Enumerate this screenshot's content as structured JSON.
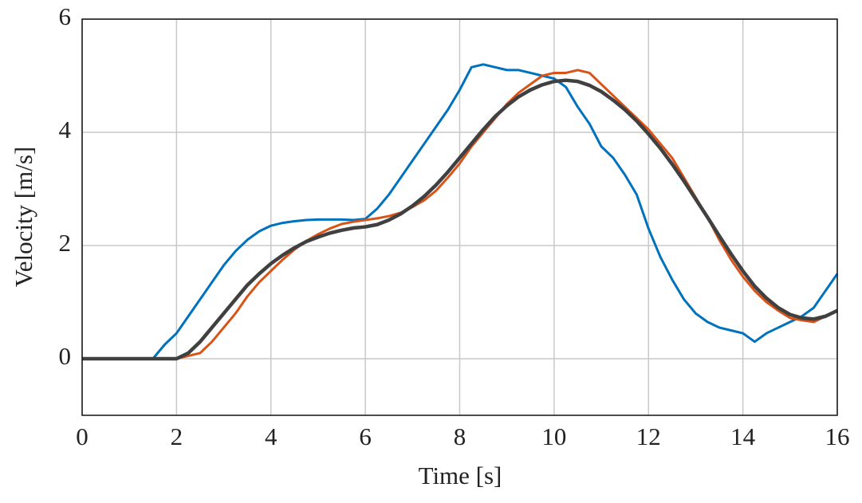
{
  "chart_data": {
    "type": "line",
    "x_label": "Time [s]",
    "y_label": "Velocity [m/s]",
    "x": [
      0,
      0.25,
      0.5,
      0.75,
      1,
      1.25,
      1.5,
      1.75,
      2,
      2.25,
      2.5,
      2.75,
      3,
      3.25,
      3.5,
      3.75,
      4,
      4.25,
      4.5,
      4.75,
      5,
      5.25,
      5.5,
      5.75,
      6,
      6.25,
      6.5,
      6.75,
      7,
      7.25,
      7.5,
      7.75,
      8,
      8.25,
      8.5,
      8.75,
      9,
      9.25,
      9.5,
      9.75,
      10,
      10.25,
      10.5,
      10.75,
      11,
      11.25,
      11.5,
      11.75,
      12,
      12.25,
      12.5,
      12.75,
      13,
      13.25,
      13.5,
      13.75,
      14,
      14.25,
      14.5,
      14.75,
      15,
      15.25,
      15.5,
      15.75,
      16
    ],
    "series": [
      {
        "color": "#0072BD",
        "values": [
          0,
          0,
          0,
          0,
          0,
          0,
          0,
          0.25,
          0.45,
          0.75,
          1.05,
          1.35,
          1.65,
          1.9,
          2.1,
          2.25,
          2.35,
          2.4,
          2.43,
          2.45,
          2.46,
          2.46,
          2.46,
          2.45,
          2.47,
          2.65,
          2.9,
          3.2,
          3.5,
          3.8,
          4.1,
          4.4,
          4.75,
          5.15,
          5.2,
          5.15,
          5.1,
          5.1,
          5.05,
          5.0,
          4.95,
          4.8,
          4.45,
          4.15,
          3.75,
          3.55,
          3.25,
          2.9,
          2.3,
          1.8,
          1.4,
          1.05,
          0.8,
          0.65,
          0.55,
          0.5,
          0.45,
          0.3,
          0.45,
          0.55,
          0.65,
          0.75,
          0.9,
          1.2,
          1.5
        ]
      },
      {
        "color": "#D95319",
        "values": [
          0,
          0,
          0,
          0,
          0,
          0,
          0,
          0,
          0,
          0.05,
          0.1,
          0.3,
          0.55,
          0.8,
          1.1,
          1.35,
          1.55,
          1.75,
          1.93,
          2.08,
          2.2,
          2.3,
          2.38,
          2.42,
          2.45,
          2.48,
          2.52,
          2.58,
          2.68,
          2.8,
          2.97,
          3.2,
          3.45,
          3.75,
          4.0,
          4.25,
          4.5,
          4.7,
          4.85,
          5.0,
          5.05,
          5.05,
          5.1,
          5.05,
          4.85,
          4.65,
          4.45,
          4.25,
          4.05,
          3.8,
          3.55,
          3.2,
          2.85,
          2.5,
          2.1,
          1.75,
          1.45,
          1.2,
          1.0,
          0.85,
          0.72,
          0.68,
          0.65,
          0.75,
          0.85
        ]
      },
      {
        "color": "#404040",
        "values": [
          0,
          0,
          0,
          0,
          0,
          0,
          0,
          0,
          0,
          0.1,
          0.3,
          0.55,
          0.8,
          1.05,
          1.3,
          1.5,
          1.68,
          1.83,
          1.96,
          2.07,
          2.15,
          2.22,
          2.27,
          2.31,
          2.33,
          2.37,
          2.45,
          2.56,
          2.7,
          2.87,
          3.07,
          3.3,
          3.55,
          3.8,
          4.05,
          4.28,
          4.47,
          4.63,
          4.75,
          4.84,
          4.9,
          4.92,
          4.9,
          4.83,
          4.72,
          4.57,
          4.4,
          4.2,
          3.97,
          3.72,
          3.44,
          3.14,
          2.82,
          2.5,
          2.17,
          1.85,
          1.55,
          1.28,
          1.07,
          0.9,
          0.78,
          0.72,
          0.7,
          0.75,
          0.85
        ]
      }
    ],
    "xlim": [
      0,
      16
    ],
    "xticks": [
      0,
      2,
      4,
      6,
      8,
      10,
      12,
      14,
      16
    ],
    "ylim": [
      -1,
      6
    ],
    "yticks": [
      0,
      2,
      4,
      6
    ],
    "grid": true
  }
}
